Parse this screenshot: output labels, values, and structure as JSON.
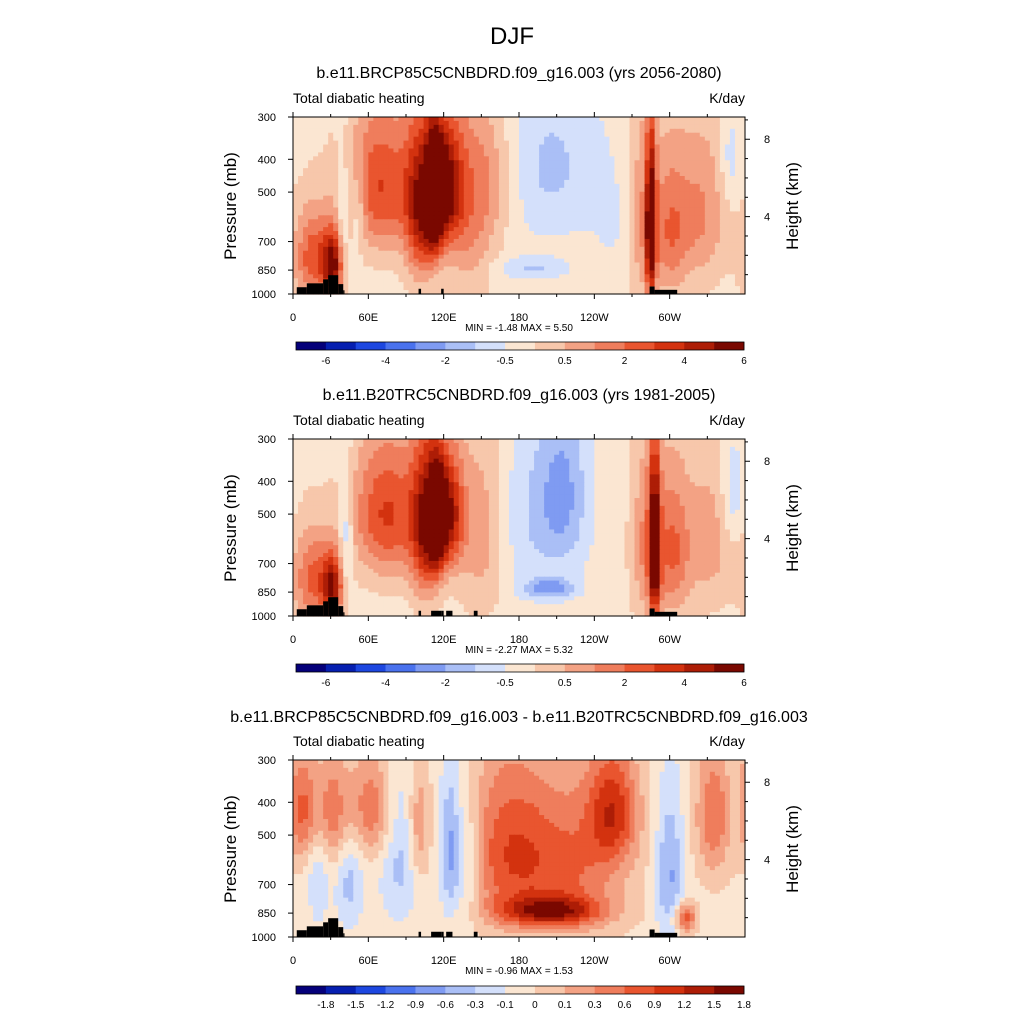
{
  "page_title": "DJF",
  "palette": {
    "cold": [
      "#05007a",
      "#061fb0",
      "#1d47e0",
      "#4a72ee",
      "#7f9bf2",
      "#aabff6",
      "#d4e0fb"
    ],
    "neutral": "#fbe6d2",
    "warm": [
      "#f7c7ab",
      "#f3a284",
      "#ef7d5c",
      "#e9552f",
      "#d3320f",
      "#ad1d06",
      "#7a0800"
    ]
  },
  "chart_data": [
    {
      "type": "heatmap",
      "title": "b.e11.BRCP85C5CNBDRD.f09_g16.003 (yrs 2056-2080)",
      "subtitle_left": "Total diabatic heating",
      "subtitle_right": "K/day",
      "ylabel": "Pressure (mb)",
      "ylabel_right": "Height (km)",
      "x_ticks": [
        "0",
        "60E",
        "120E",
        "180",
        "120W",
        "60W"
      ],
      "y_ticks": [
        "300",
        "400",
        "500",
        "700",
        "850",
        "1000"
      ],
      "y_right_ticks": [
        "8",
        "4"
      ],
      "stats": "MIN =  -1.48  MAX =   5.50",
      "colorbar_labels": [
        "-6",
        "-4",
        "-2",
        "-0.5",
        "0.5",
        "2",
        "4",
        "6"
      ],
      "nlev": 5.5,
      "blobs": [
        {
          "lon": 16,
          "p": 780,
          "w": 11,
          "h": 170,
          "amp": 3.2
        },
        {
          "lon": 32,
          "p": 820,
          "w": 6,
          "h": 130,
          "amp": 4.8
        },
        {
          "lon": 40,
          "p": 600,
          "w": 4,
          "h": 200,
          "amp": -1.5
        },
        {
          "lon": 52,
          "p": 560,
          "w": 4,
          "h": 120,
          "amp": -1.5
        },
        {
          "lon": 70,
          "p": 480,
          "w": 20,
          "h": 170,
          "amp": 3.5
        },
        {
          "lon": 102,
          "p": 560,
          "w": 9,
          "h": 220,
          "amp": 4.3
        },
        {
          "lon": 113,
          "p": 520,
          "w": 5,
          "h": 150,
          "amp": 5.0
        },
        {
          "lon": 122,
          "p": 480,
          "w": 9,
          "h": 140,
          "amp": 4.6
        },
        {
          "lon": 140,
          "p": 560,
          "w": 15,
          "h": 260,
          "amp": 2.2
        },
        {
          "lon": 160,
          "p": 450,
          "w": 15,
          "h": 130,
          "amp": 1.2
        },
        {
          "lon": 205,
          "p": 420,
          "w": 28,
          "h": 170,
          "amp": -1.4
        },
        {
          "lon": 190,
          "p": 840,
          "w": 20,
          "h": 45,
          "amp": -1.3
        },
        {
          "lon": 260,
          "p": 620,
          "w": 14,
          "h": 160,
          "amp": -0.6
        },
        {
          "lon": 277,
          "p": 600,
          "w": 9,
          "h": 260,
          "amp": 1.8
        },
        {
          "lon": 285,
          "p": 640,
          "w": 3,
          "h": 260,
          "amp": 5.5
        },
        {
          "lon": 300,
          "p": 650,
          "w": 10,
          "h": 230,
          "amp": 2.4
        },
        {
          "lon": 325,
          "p": 580,
          "w": 14,
          "h": 220,
          "amp": 2.0
        },
        {
          "lon": 348,
          "p": 400,
          "w": 5,
          "h": 90,
          "amp": -1.0
        }
      ]
    },
    {
      "type": "heatmap",
      "title": "b.e11.B20TRC5CNBDRD.f09_g16.003 (yrs 1981-2005)",
      "subtitle_left": "Total diabatic heating",
      "subtitle_right": "K/day",
      "ylabel": "Pressure (mb)",
      "ylabel_right": "Height (km)",
      "x_ticks": [
        "0",
        "60E",
        "120E",
        "180",
        "120W",
        "60W"
      ],
      "y_ticks": [
        "300",
        "400",
        "500",
        "700",
        "850",
        "1000"
      ],
      "y_right_ticks": [
        "8",
        "4"
      ],
      "stats": "MIN =  -2.27  MAX =   5.32",
      "colorbar_labels": [
        "-6",
        "-4",
        "-2",
        "-0.5",
        "0.5",
        "2",
        "4",
        "6"
      ],
      "nlev": 5.5,
      "blobs": [
        {
          "lon": 16,
          "p": 780,
          "w": 11,
          "h": 170,
          "amp": 3.0
        },
        {
          "lon": 32,
          "p": 820,
          "w": 6,
          "h": 130,
          "amp": 4.5
        },
        {
          "lon": 42,
          "p": 600,
          "w": 4,
          "h": 200,
          "amp": -1.6
        },
        {
          "lon": 75,
          "p": 500,
          "w": 20,
          "h": 170,
          "amp": 3.6
        },
        {
          "lon": 105,
          "p": 540,
          "w": 8,
          "h": 220,
          "amp": 4.2
        },
        {
          "lon": 115,
          "p": 520,
          "w": 5,
          "h": 150,
          "amp": 4.8
        },
        {
          "lon": 125,
          "p": 500,
          "w": 8,
          "h": 140,
          "amp": 4.4
        },
        {
          "lon": 150,
          "p": 560,
          "w": 14,
          "h": 260,
          "amp": 1.8
        },
        {
          "lon": 190,
          "p": 520,
          "w": 26,
          "h": 230,
          "amp": -1.1
        },
        {
          "lon": 215,
          "p": 430,
          "w": 14,
          "h": 170,
          "amp": -1.8
        },
        {
          "lon": 205,
          "p": 830,
          "w": 14,
          "h": 40,
          "amp": -2.3
        },
        {
          "lon": 283,
          "p": 620,
          "w": 9,
          "h": 260,
          "amp": 2.3
        },
        {
          "lon": 288,
          "p": 640,
          "w": 3,
          "h": 260,
          "amp": 5.3
        },
        {
          "lon": 303,
          "p": 640,
          "w": 9,
          "h": 230,
          "amp": 2.5
        },
        {
          "lon": 330,
          "p": 600,
          "w": 14,
          "h": 220,
          "amp": 1.6
        },
        {
          "lon": 350,
          "p": 430,
          "w": 6,
          "h": 110,
          "amp": -1.2
        }
      ]
    },
    {
      "type": "heatmap",
      "title": "b.e11.BRCP85C5CNBDRD.f09_g16.003 - b.e11.B20TRC5CNBDRD.f09_g16.003",
      "subtitle_left": "Total diabatic heating",
      "subtitle_right": "K/day",
      "ylabel": "Pressure (mb)",
      "ylabel_right": "Height (km)",
      "x_ticks": [
        "0",
        "60E",
        "120E",
        "180",
        "120W",
        "60W"
      ],
      "y_ticks": [
        "300",
        "400",
        "500",
        "700",
        "850",
        "1000"
      ],
      "y_right_ticks": [
        "8",
        "4"
      ],
      "stats": "MIN =  -0.96  MAX =   1.53",
      "colorbar_labels": [
        "-1.8",
        "-1.5",
        "-1.2",
        "-0.9",
        "-0.6",
        "-0.3",
        "-0.1",
        "0",
        "0.1",
        "0.3",
        "0.6",
        "0.9",
        "1.2",
        "1.5",
        "1.8"
      ],
      "nlev": 1.95,
      "blobs": [
        {
          "lon": 8,
          "p": 420,
          "w": 10,
          "h": 110,
          "amp": 1.0
        },
        {
          "lon": 20,
          "p": 620,
          "w": 6,
          "h": 200,
          "amp": -0.5
        },
        {
          "lon": 32,
          "p": 430,
          "w": 10,
          "h": 120,
          "amp": 0.8
        },
        {
          "lon": 45,
          "p": 650,
          "w": 8,
          "h": 200,
          "amp": -0.6
        },
        {
          "lon": 62,
          "p": 420,
          "w": 14,
          "h": 110,
          "amp": 0.9
        },
        {
          "lon": 85,
          "p": 560,
          "w": 12,
          "h": 220,
          "amp": -0.6
        },
        {
          "lon": 100,
          "p": 470,
          "w": 6,
          "h": 140,
          "amp": 0.7
        },
        {
          "lon": 125,
          "p": 560,
          "w": 6,
          "h": 200,
          "amp": -0.9
        },
        {
          "lon": 140,
          "p": 600,
          "w": 8,
          "h": 200,
          "amp": -0.5
        },
        {
          "lon": 170,
          "p": 560,
          "w": 24,
          "h": 230,
          "amp": 1.0
        },
        {
          "lon": 205,
          "p": 840,
          "w": 28,
          "h": 60,
          "amp": 1.4
        },
        {
          "lon": 220,
          "p": 620,
          "w": 30,
          "h": 230,
          "amp": 0.9
        },
        {
          "lon": 255,
          "p": 420,
          "w": 14,
          "h": 120,
          "amp": 1.2
        },
        {
          "lon": 300,
          "p": 660,
          "w": 8,
          "h": 240,
          "amp": -0.8
        },
        {
          "lon": 312,
          "p": 880,
          "w": 6,
          "h": 60,
          "amp": 1.2
        },
        {
          "lon": 335,
          "p": 440,
          "w": 10,
          "h": 140,
          "amp": 0.9
        },
        {
          "lon": 352,
          "p": 430,
          "w": 4,
          "h": 80,
          "amp": -0.4
        }
      ]
    }
  ]
}
